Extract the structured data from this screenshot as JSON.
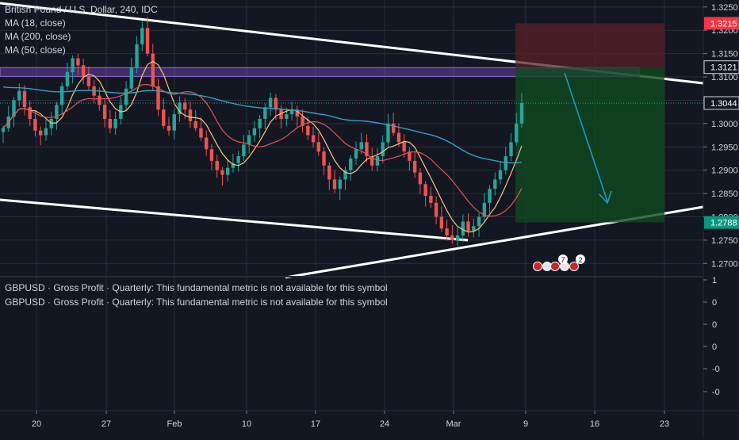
{
  "legend": {
    "symbol_title": "British Pound / U.S. Dollar, 240, IDC",
    "ma18": "MA (18, close)",
    "ma200": "MA (200, close)",
    "ma50": "MA (50, close)"
  },
  "lower_pane": {
    "line1": "GBPUSD · Gross Profit · Quarterly: This fundamental metric is not available for this symbol",
    "line2": "GBPUSD · Gross Profit · Quarterly: This fundamental metric is not available for this symbol"
  },
  "colors": {
    "background": "#131722",
    "grid": "#2a2e39",
    "up_candle": "#26a69a",
    "down_candle": "#ef5350",
    "ma18": "#f7c77c",
    "ma200": "#2ea3c7",
    "ma50": "#e8525a",
    "trendline": "#ffffff",
    "zone": "#6a3fa8",
    "stop_zone": "#5b1f25",
    "target_zone": "#0f4a1e",
    "arrow": "#2196c9"
  },
  "chart_data": {
    "type": "candlestick",
    "title": "British Pound / U.S. Dollar, 240, IDC",
    "y_axis": {
      "range": [
        1.2675,
        1.3265
      ],
      "ticks": [
        "1.3250",
        "1.3200",
        "1.3150",
        "1.3100",
        "1.3050",
        "1.3000",
        "1.2950",
        "1.2900",
        "1.2850",
        "1.2800",
        "1.2750",
        "1.2700"
      ]
    },
    "x_axis": {
      "ticks": [
        "20",
        "27",
        "Feb",
        "10",
        "17",
        "24",
        "Mar",
        "9",
        "16",
        "23"
      ]
    },
    "price_labels": [
      {
        "value": "1.3215",
        "color": "#f23645",
        "price": 1.3215
      },
      {
        "value": "1.3121",
        "color": "#131722",
        "price": 1.3121
      },
      {
        "value": "1.3044",
        "color": "#131722",
        "price": 1.3044
      },
      {
        "value": "1.2788",
        "color": "#089981",
        "price": 1.2788
      }
    ],
    "close_series": [
      1.299,
      1.3015,
      1.305,
      1.307,
      1.3035,
      1.301,
      1.2985,
      1.2975,
      1.299,
      1.301,
      1.304,
      1.308,
      1.311,
      1.314,
      1.3125,
      1.31,
      1.308,
      1.306,
      1.304,
      1.301,
      1.299,
      1.301,
      1.304,
      1.3075,
      1.312,
      1.317,
      1.3205,
      1.315,
      1.308,
      1.303,
      1.2995,
      1.2985,
      1.302,
      1.3045,
      1.303,
      1.3005,
      1.299,
      1.297,
      1.2945,
      1.292,
      1.29,
      1.289,
      1.2905,
      1.2915,
      1.293,
      1.2955,
      1.2975,
      1.299,
      1.301,
      1.3035,
      1.3055,
      1.303,
      1.301,
      1.302,
      1.303,
      1.3015,
      1.2995,
      1.2975,
      1.296,
      1.294,
      1.291,
      1.288,
      1.286,
      1.288,
      1.29,
      1.2925,
      1.2945,
      1.296,
      1.293,
      1.291,
      1.293,
      1.296,
      1.3,
      1.298,
      1.296,
      1.294,
      1.292,
      1.2895,
      1.287,
      1.2845,
      1.283,
      1.28,
      1.2775,
      1.276,
      1.275,
      1.276,
      1.279,
      1.277,
      1.278,
      1.28,
      1.283,
      1.286,
      1.288,
      1.29,
      1.293,
      1.296,
      1.3,
      1.3044
    ],
    "moving_averages": [
      {
        "name": "MA (18, close)",
        "color": "#f7c77c"
      },
      {
        "name": "MA (200, close)",
        "color": "#2ea3c7"
      },
      {
        "name": "MA (50, close)",
        "color": "#e8525a"
      }
    ],
    "drawings": {
      "upper_trendline": [
        [
          1.3265,
          "start"
        ],
        [
          1.3085,
          "end"
        ]
      ],
      "lower_trendline_1": [
        [
          1.284,
          "start"
        ],
        [
          1.2752,
          "end"
        ]
      ],
      "lower_trendline_2": [
        [
          1.2675,
          "start"
        ],
        [
          1.2825,
          "end"
        ]
      ],
      "resistance_zone": [
        1.3108,
        1.312
      ],
      "short_position": {
        "entry": 1.3121,
        "stop": 1.3215,
        "target": 1.2788
      }
    },
    "lower_pane_ticks": [
      "1",
      "0",
      "0",
      "0",
      "-0",
      "-0",
      "-0"
    ],
    "grid": true
  }
}
